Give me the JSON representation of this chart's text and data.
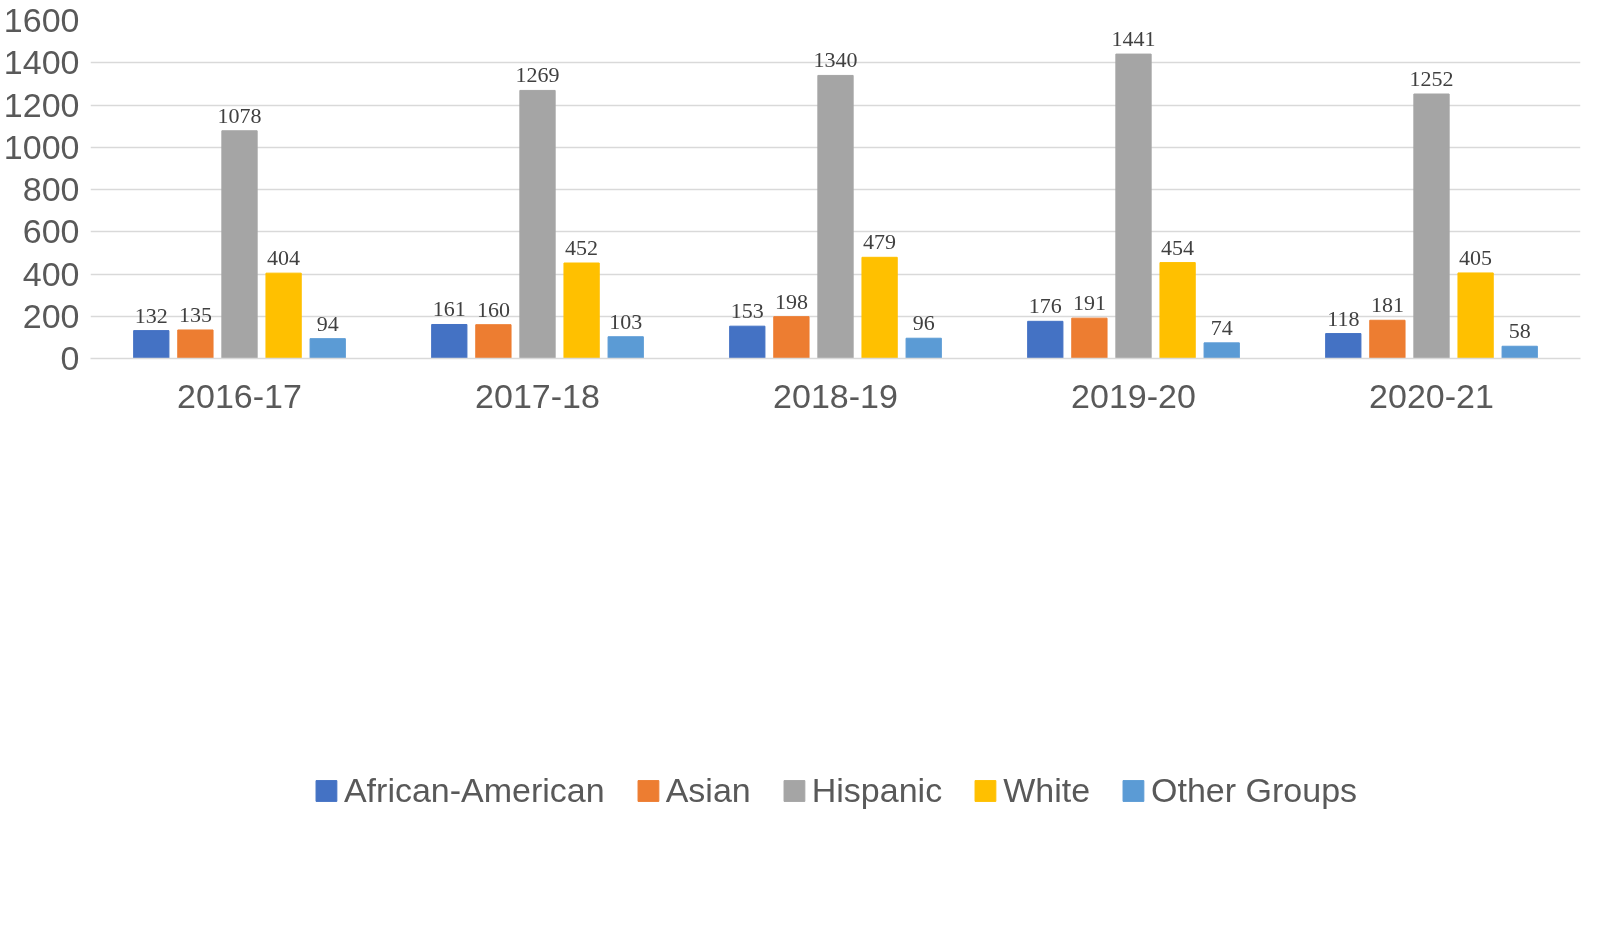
{
  "chart_data": {
    "type": "bar",
    "categories": [
      "2016-17",
      "2017-18",
      "2018-19",
      "2019-20",
      "2020-21"
    ],
    "series": [
      {
        "name": "African-American",
        "color": "#4472c4",
        "values": [
          132,
          161,
          153,
          176,
          118
        ]
      },
      {
        "name": "Asian",
        "color": "#ed7d31",
        "values": [
          135,
          160,
          198,
          191,
          181
        ]
      },
      {
        "name": "Hispanic",
        "color": "#a5a5a5",
        "values": [
          1078,
          1269,
          1340,
          1441,
          1252
        ]
      },
      {
        "name": "White",
        "color": "#ffc000",
        "values": [
          404,
          452,
          479,
          454,
          405
        ]
      },
      {
        "name": "Other Groups",
        "color": "#5b9bd5",
        "values": [
          94,
          103,
          96,
          74,
          58
        ]
      }
    ],
    "ylim": [
      0,
      1600
    ],
    "yticks": [
      0,
      200,
      400,
      600,
      800,
      1000,
      1200,
      1400,
      1600
    ],
    "grid": "y",
    "legend": "bottom",
    "data_labels": true
  }
}
